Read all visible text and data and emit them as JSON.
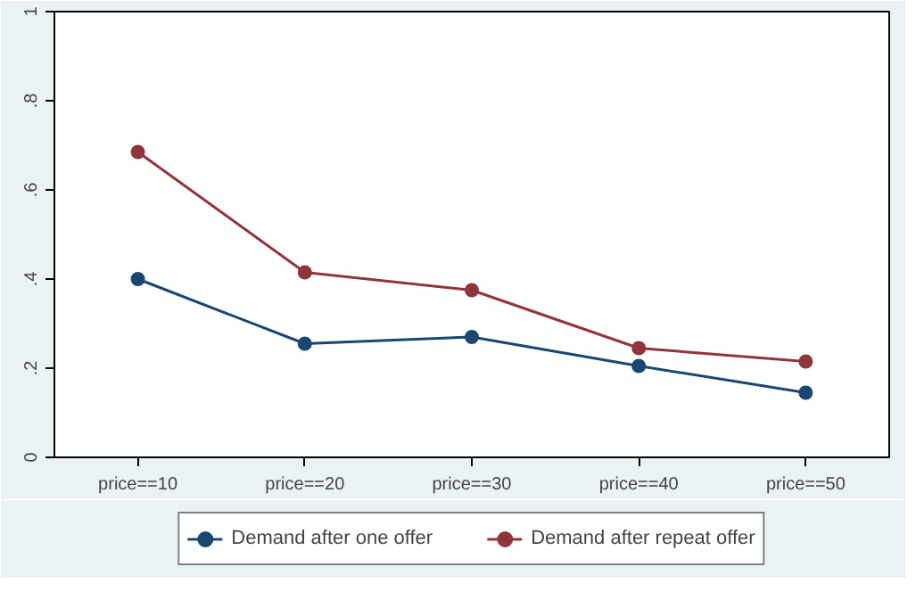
{
  "chart_data": {
    "type": "line",
    "categories": [
      "price==10",
      "price==20",
      "price==30",
      "price==40",
      "price==50"
    ],
    "series": [
      {
        "name": "Demand after one offer",
        "color": "#1a476f",
        "values": [
          0.4,
          0.255,
          0.27,
          0.205,
          0.145
        ]
      },
      {
        "name": "Demand after repeat offer",
        "color": "#90353b",
        "values": [
          0.685,
          0.415,
          0.375,
          0.245,
          0.215
        ]
      }
    ],
    "ylim": [
      0,
      1
    ],
    "yticks": [
      0,
      {
        "value": 0.2,
        "label": ".2"
      },
      {
        "value": 0.4,
        "label": ".4"
      },
      {
        "value": 0.6,
        "label": ".6"
      },
      {
        "value": 0.8,
        "label": ".8"
      },
      1
    ],
    "marker": "circle",
    "legend": "bottom",
    "grid": false
  }
}
